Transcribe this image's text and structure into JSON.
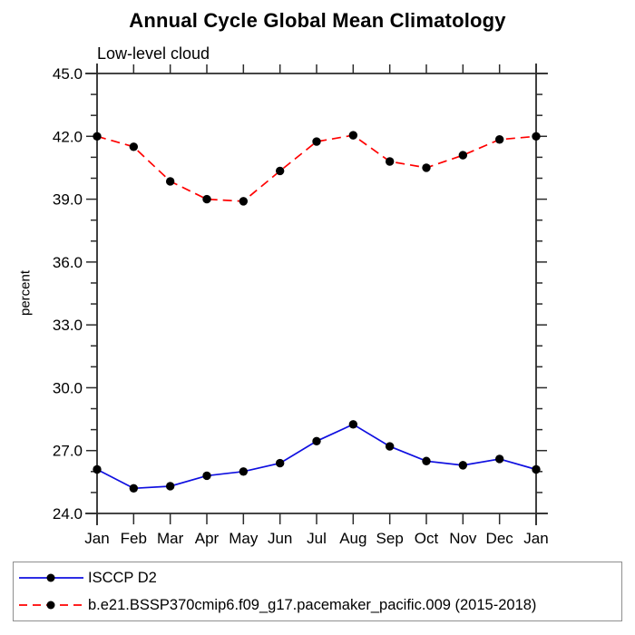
{
  "chart_data": {
    "type": "line",
    "title": "Annual Cycle Global Mean Climatology",
    "subtitle": "Low-level cloud",
    "ylabel": "percent",
    "x_categories": [
      "Jan",
      "Feb",
      "Mar",
      "Apr",
      "May",
      "Jun",
      "Jul",
      "Aug",
      "Sep",
      "Oct",
      "Nov",
      "Dec",
      "Jan"
    ],
    "ylim": [
      24.0,
      45.0
    ],
    "ytick_major_step": 3.0,
    "ytick_minor_step": 1.0,
    "ytick_labels": [
      "24.0",
      "27.0",
      "30.0",
      "33.0",
      "36.0",
      "39.0",
      "42.0",
      "45.0"
    ],
    "grid": false,
    "legend_position": "bottom",
    "marker": "filled-circle",
    "marker_color": "#000000",
    "axis_color": "#2b2b2b",
    "series": [
      {
        "name": "ISCCP D2",
        "color": "#0f0fe0",
        "line_style": "solid",
        "values": [
          26.1,
          25.2,
          25.3,
          25.8,
          26.0,
          26.4,
          27.45,
          28.25,
          27.2,
          26.5,
          26.3,
          26.6,
          26.1
        ]
      },
      {
        "name": "b.e21.BSSP370cmip6.f09_g17.pacemaker_pacific.009 (2015-2018)",
        "color": "#ff0000",
        "line_style": "dashed",
        "values": [
          42.0,
          41.5,
          39.85,
          39.0,
          38.9,
          40.35,
          41.75,
          42.05,
          40.8,
          40.5,
          41.1,
          41.85,
          42.0
        ]
      }
    ]
  }
}
